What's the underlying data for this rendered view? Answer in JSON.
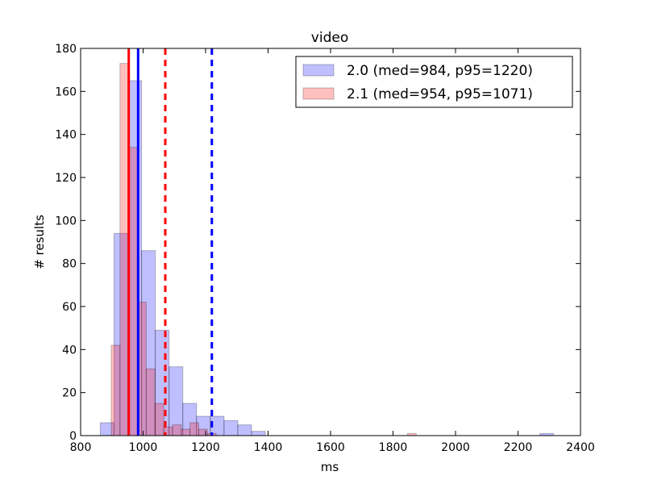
{
  "chart_data": {
    "type": "bar",
    "title": "video",
    "xlabel": "ms",
    "ylabel": "# results",
    "xlim": [
      800,
      2400
    ],
    "ylim": [
      0,
      180
    ],
    "xticks": [
      800,
      1000,
      1200,
      1400,
      1600,
      1800,
      2000,
      2200,
      2400
    ],
    "yticks": [
      0,
      20,
      40,
      60,
      80,
      100,
      120,
      140,
      160,
      180
    ],
    "legend_position": "top-right",
    "grid": false,
    "series": [
      {
        "name": "2.0 (med=984, p95=1220)",
        "color": "#0000ff",
        "median": 984,
        "p95": 1220,
        "bins": [
          {
            "x0": 863,
            "x1": 907,
            "value": 6
          },
          {
            "x0": 907,
            "x1": 951,
            "value": 94
          },
          {
            "x0": 951,
            "x1": 995,
            "value": 165
          },
          {
            "x0": 995,
            "x1": 1039,
            "value": 86
          },
          {
            "x0": 1039,
            "x1": 1083,
            "value": 49
          },
          {
            "x0": 1083,
            "x1": 1127,
            "value": 32
          },
          {
            "x0": 1127,
            "x1": 1171,
            "value": 15
          },
          {
            "x0": 1171,
            "x1": 1215,
            "value": 9
          },
          {
            "x0": 1215,
            "x1": 1259,
            "value": 9
          },
          {
            "x0": 1259,
            "x1": 1303,
            "value": 7
          },
          {
            "x0": 1303,
            "x1": 1347,
            "value": 5
          },
          {
            "x0": 1347,
            "x1": 1391,
            "value": 2
          },
          {
            "x0": 2270,
            "x1": 2314,
            "value": 1
          }
        ]
      },
      {
        "name": "2.1 (med=954, p95=1071)",
        "color": "#ff0000",
        "median": 954,
        "p95": 1071,
        "bins": [
          {
            "x0": 898,
            "x1": 926,
            "value": 42
          },
          {
            "x0": 926,
            "x1": 954,
            "value": 173
          },
          {
            "x0": 954,
            "x1": 982,
            "value": 134
          },
          {
            "x0": 982,
            "x1": 1010,
            "value": 62
          },
          {
            "x0": 1010,
            "x1": 1038,
            "value": 31
          },
          {
            "x0": 1038,
            "x1": 1066,
            "value": 15
          },
          {
            "x0": 1066,
            "x1": 1094,
            "value": 4
          },
          {
            "x0": 1094,
            "x1": 1122,
            "value": 5
          },
          {
            "x0": 1122,
            "x1": 1150,
            "value": 3
          },
          {
            "x0": 1150,
            "x1": 1178,
            "value": 6
          },
          {
            "x0": 1178,
            "x1": 1206,
            "value": 3
          },
          {
            "x0": 1206,
            "x1": 1234,
            "value": 1
          },
          {
            "x0": 1846,
            "x1": 1874,
            "value": 1
          }
        ]
      }
    ]
  }
}
